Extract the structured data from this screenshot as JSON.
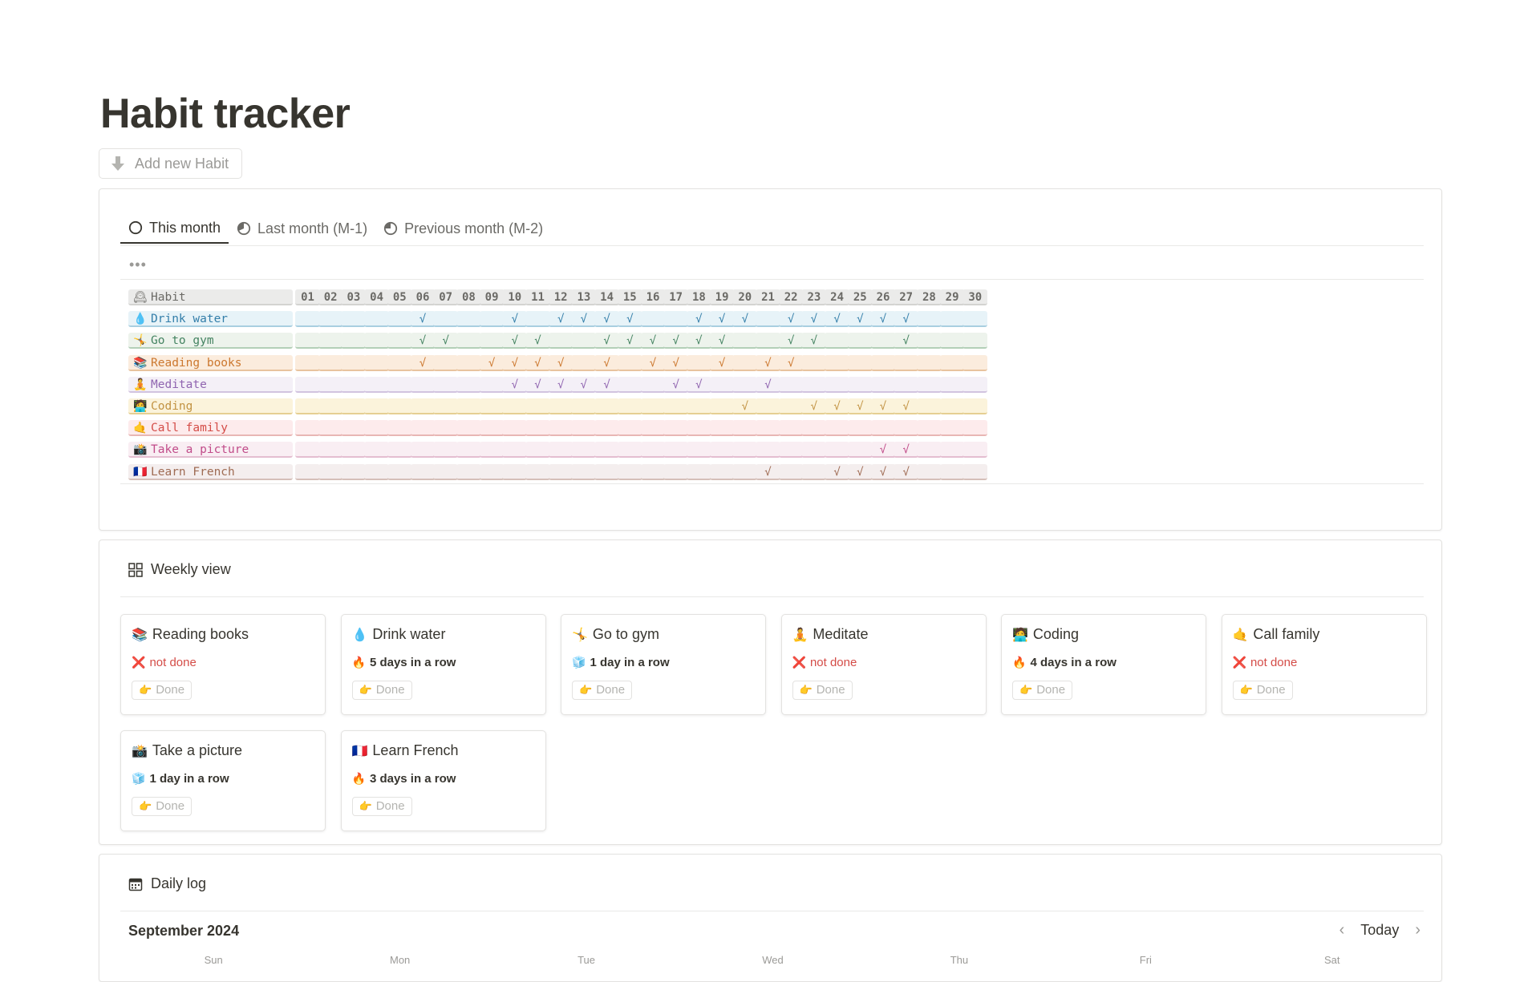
{
  "page": {
    "title": "Habit tracker",
    "add_button_label": "Add new Habit"
  },
  "tracker": {
    "tabs": [
      {
        "label": "This month",
        "icon": "circle-empty-icon",
        "active": true
      },
      {
        "label": "Last month (M-1)",
        "icon": "circle-half-icon",
        "active": false
      },
      {
        "label": "Previous month (M-2)",
        "icon": "circle-quarter-icon",
        "active": false
      }
    ],
    "more_label": "•••",
    "header": {
      "emoji": "🕰",
      "label": "Habit"
    },
    "days": [
      "01",
      "02",
      "03",
      "04",
      "05",
      "06",
      "07",
      "08",
      "09",
      "10",
      "11",
      "12",
      "13",
      "14",
      "15",
      "16",
      "17",
      "18",
      "19",
      "20",
      "21",
      "22",
      "23",
      "24",
      "25",
      "26",
      "27",
      "28",
      "29",
      "30"
    ],
    "check_mark": "√",
    "habits": [
      {
        "emoji": "💧",
        "name": "Drink water",
        "bg": "#e7f3f8",
        "line": "#a9cfe0",
        "fg": "#337ea9",
        "done": [
          6,
          10,
          12,
          13,
          14,
          15,
          18,
          19,
          20,
          22,
          23,
          24,
          25,
          26,
          27
        ]
      },
      {
        "emoji": "🤸",
        "name": "Go to gym",
        "bg": "#edf3ec",
        "line": "#b3cfb7",
        "fg": "#448361",
        "done": [
          6,
          7,
          10,
          11,
          14,
          15,
          16,
          17,
          18,
          19,
          22,
          23,
          27
        ]
      },
      {
        "emoji": "📚",
        "name": "Reading books",
        "bg": "#fbecdd",
        "line": "#e8c39e",
        "fg": "#cc782f",
        "done": [
          6,
          9,
          10,
          11,
          12,
          14,
          16,
          17,
          19,
          21,
          22
        ]
      },
      {
        "emoji": "🧘",
        "name": "Meditate",
        "bg": "#f4f0f7",
        "line": "#d1c3df",
        "fg": "#9065b0",
        "done": [
          10,
          11,
          12,
          13,
          14,
          17,
          18,
          21
        ]
      },
      {
        "emoji": "🧑‍💻",
        "name": "Coding",
        "bg": "#fbf3db",
        "line": "#e5cf92",
        "fg": "#c29343",
        "done": [
          20,
          23,
          24,
          25,
          26,
          27
        ]
      },
      {
        "emoji": "🤙",
        "name": "Call family",
        "bg": "#fdebec",
        "line": "#e8b6b4",
        "fg": "#d44c47",
        "done": []
      },
      {
        "emoji": "📸",
        "name": "Take a picture",
        "bg": "#f9eef3",
        "line": "#e4bdd0",
        "fg": "#c14c8a",
        "done": [
          26,
          27
        ]
      },
      {
        "emoji": "🇫🇷",
        "name": "Learn French",
        "bg": "#f4eeee",
        "line": "#d5bfb8",
        "fg": "#9f6b53",
        "done": [
          21,
          24,
          25,
          26,
          27
        ]
      }
    ]
  },
  "weekly": {
    "title": "Weekly view",
    "icon": "grid-icon",
    "done_label": "Done",
    "done_emoji": "👉",
    "cards": [
      {
        "emoji": "📚",
        "name": "Reading books",
        "status_emoji": "❌",
        "status": "not done",
        "good": false
      },
      {
        "emoji": "💧",
        "name": "Drink water",
        "status_emoji": "🔥",
        "status": "5 days in a row",
        "good": true
      },
      {
        "emoji": "🤸",
        "name": "Go to gym",
        "status_emoji": "🧊",
        "status": "1 day in a row",
        "good": true
      },
      {
        "emoji": "🧘",
        "name": "Meditate",
        "status_emoji": "❌",
        "status": "not done",
        "good": false
      },
      {
        "emoji": "🧑‍💻",
        "name": "Coding",
        "status_emoji": "🔥",
        "status": "4 days in a row",
        "good": true
      },
      {
        "emoji": "🤙",
        "name": "Call family",
        "status_emoji": "❌",
        "status": "not done",
        "good": false
      },
      {
        "emoji": "📸",
        "name": "Take a picture",
        "status_emoji": "🧊",
        "status": "1 day in a row",
        "good": true
      },
      {
        "emoji": "🇫🇷",
        "name": "Learn French",
        "status_emoji": "🔥",
        "status": "3 days in a row",
        "good": true
      }
    ]
  },
  "daily": {
    "title": "Daily log",
    "icon": "calendar-icon",
    "month": "September 2024",
    "today_label": "Today",
    "weekdays": [
      "Sun",
      "Mon",
      "Tue",
      "Wed",
      "Thu",
      "Fri",
      "Sat"
    ]
  }
}
